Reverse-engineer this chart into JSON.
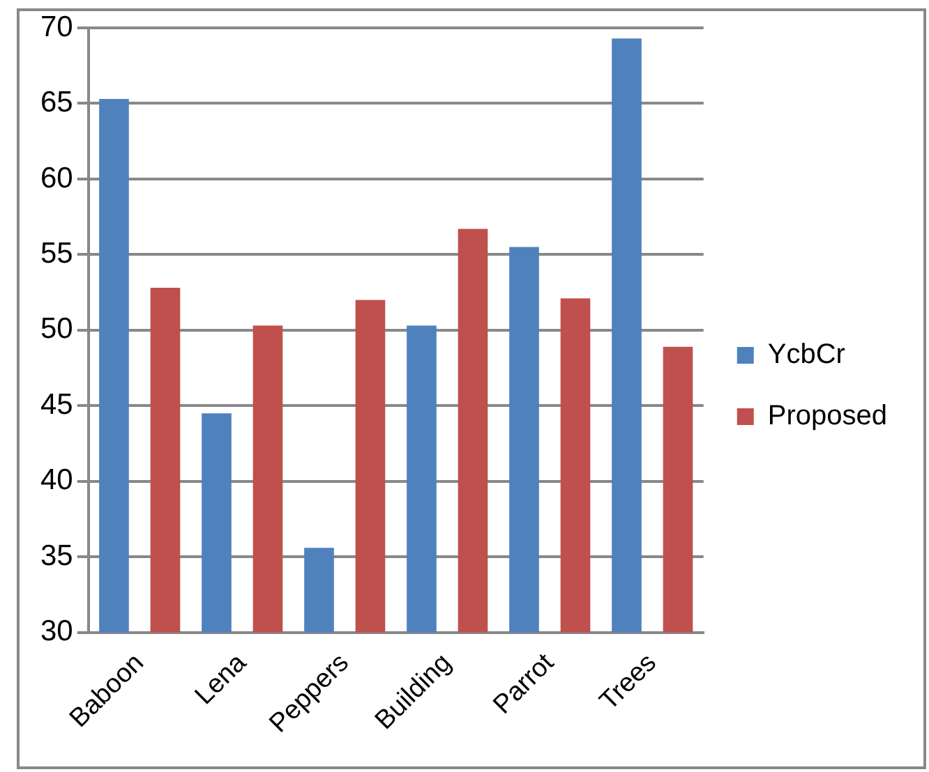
{
  "chart_data": {
    "type": "bar",
    "categories": [
      "Baboon",
      "Lena",
      "Peppers",
      "Building",
      "Parrot",
      "Trees"
    ],
    "series": [
      {
        "name": "YcbCr",
        "color": "#4f81bd",
        "values": [
          65.3,
          44.5,
          35.6,
          50.3,
          55.5,
          69.3
        ]
      },
      {
        "name": "Proposed",
        "color": "#c0504d",
        "values": [
          52.8,
          50.3,
          52.0,
          56.7,
          52.1,
          48.9
        ]
      }
    ],
    "ylim": [
      30,
      70
    ],
    "yticks": [
      30,
      35,
      40,
      45,
      50,
      55,
      60,
      65,
      70
    ],
    "grid": "y",
    "legend": "right"
  }
}
